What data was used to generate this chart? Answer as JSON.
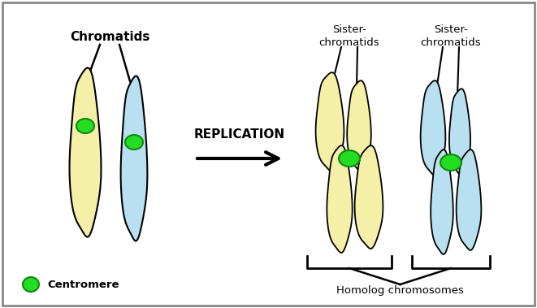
{
  "bg_color": "#ffffff",
  "border_color": "#888888",
  "yellow_color": "#f5f0a8",
  "blue_color": "#b8e0f0",
  "green_fill": "#22dd22",
  "green_edge": "#118811",
  "black": "#000000",
  "label_chromatids": "Chromatids",
  "label_sister1": "Sister-\nchromatids",
  "label_sister2": "Sister-\nchromatids",
  "label_replication": "REPLICATION",
  "label_centromere": "Centromere",
  "label_homolog": "Homolog chromosomes",
  "figsize": [
    6.61,
    3.79
  ],
  "dpi": 100
}
